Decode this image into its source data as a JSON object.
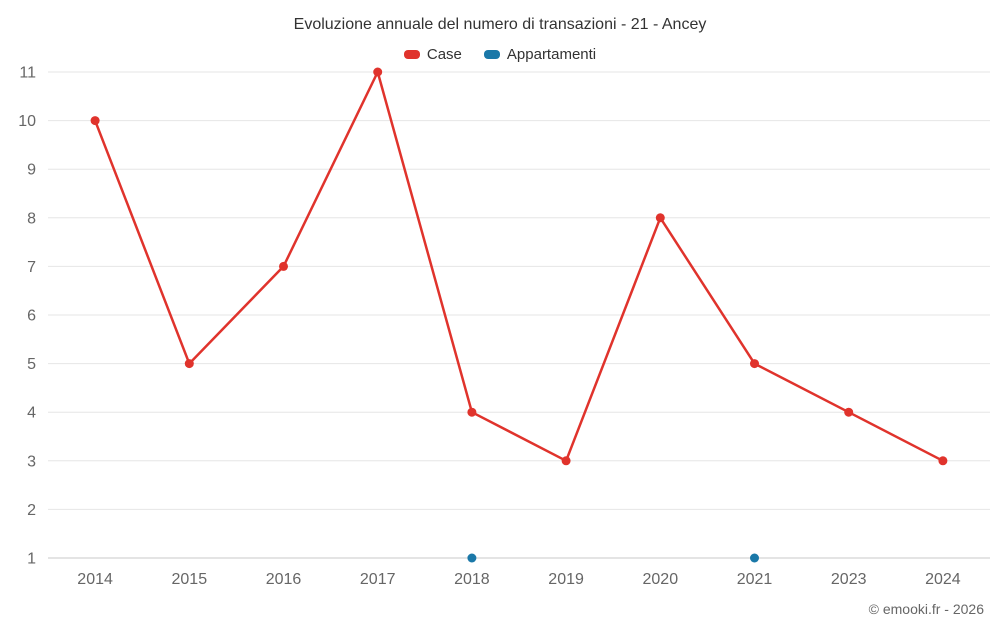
{
  "title": "Evoluzione annuale del numero di transazioni - 21 - Ancey",
  "legend": {
    "items": [
      {
        "label": "Case",
        "color": "#e0332c"
      },
      {
        "label": "Appartamenti",
        "color": "#1a78a8"
      }
    ]
  },
  "credit": "© emooki.fr - 2026",
  "chart_data": {
    "type": "line",
    "title": "Evoluzione annuale del numero di transazioni - 21 - Ancey",
    "categories": [
      "2014",
      "2015",
      "2016",
      "2017",
      "2018",
      "2019",
      "2020",
      "2021",
      "2023",
      "2024"
    ],
    "series": [
      {
        "name": "Case",
        "color": "#e0332c",
        "values": [
          10,
          5,
          7,
          11,
          4,
          3,
          8,
          5,
          4,
          3
        ]
      },
      {
        "name": "Appartamenti",
        "color": "#1a78a8",
        "values": [
          null,
          null,
          null,
          null,
          1,
          null,
          null,
          1,
          null,
          null
        ]
      }
    ],
    "xlabel": "",
    "ylabel": "",
    "ylim": [
      1,
      11
    ],
    "yticks": [
      1,
      2,
      3,
      4,
      5,
      6,
      7,
      8,
      9,
      10,
      11
    ],
    "grid": true,
    "legend_position": "top",
    "text_color": "#666666",
    "grid_color": "#e6e6e6",
    "axis_line_color": "#c9c9c9"
  }
}
